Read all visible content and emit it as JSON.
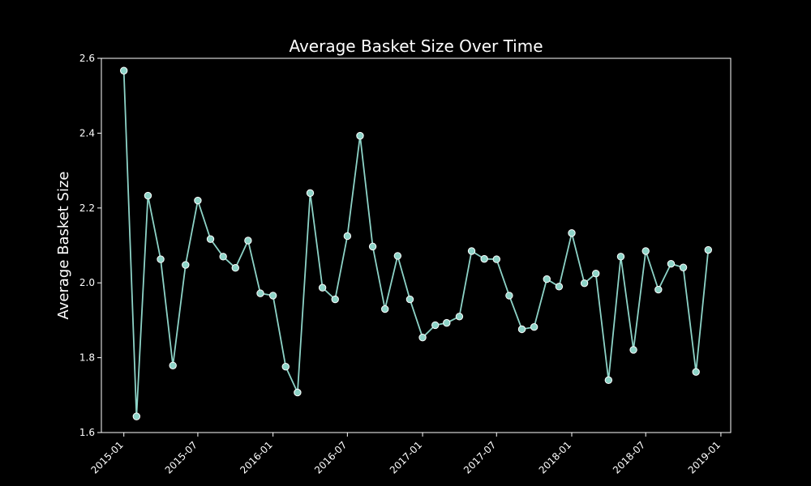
{
  "chart_data": {
    "type": "line",
    "title": "Average Basket Size Over Time",
    "xlabel": "",
    "ylabel": "Average Basket Size",
    "xlim": [
      "2014-11-07",
      "2019-01-25"
    ],
    "ylim": [
      1.6,
      2.6
    ],
    "x_ticks": [
      "2015-01",
      "2015-07",
      "2016-01",
      "2016-07",
      "2017-01",
      "2017-07",
      "2018-01",
      "2018-07",
      "2019-01"
    ],
    "y_ticks": [
      1.6,
      1.8,
      2.0,
      2.2,
      2.4,
      2.6
    ],
    "grid": false,
    "colors": {
      "line": "#8dd3c7",
      "background": "#000000",
      "axes": "#ffffff"
    },
    "series": [
      {
        "x": [
          "2015-01-01",
          "2015-02-01",
          "2015-03-01",
          "2015-04-01",
          "2015-05-01",
          "2015-06-01",
          "2015-07-01",
          "2015-08-01",
          "2015-09-01",
          "2015-10-01",
          "2015-11-01",
          "2015-12-01",
          "2016-01-01",
          "2016-02-01",
          "2016-03-01",
          "2016-04-01",
          "2016-05-01",
          "2016-06-01",
          "2016-07-01",
          "2016-08-01",
          "2016-09-01",
          "2016-10-01",
          "2016-11-01",
          "2016-12-01",
          "2017-01-01",
          "2017-02-01",
          "2017-03-01",
          "2017-04-01",
          "2017-05-01",
          "2017-06-01",
          "2017-07-01",
          "2017-08-01",
          "2017-09-01",
          "2017-10-01",
          "2017-11-01",
          "2017-12-01",
          "2018-01-01",
          "2018-02-01",
          "2018-03-01",
          "2018-04-01",
          "2018-05-01",
          "2018-06-01",
          "2018-07-01",
          "2018-08-01",
          "2018-09-01",
          "2018-10-01",
          "2018-11-01",
          "2018-12-01"
        ],
        "values": [
          2.567,
          1.643,
          2.233,
          2.063,
          1.779,
          2.048,
          2.22,
          2.117,
          2.07,
          2.04,
          2.113,
          1.972,
          1.966,
          1.776,
          1.707,
          2.24,
          1.987,
          1.956,
          2.125,
          2.393,
          2.097,
          1.93,
          2.072,
          1.956,
          1.854,
          1.887,
          1.893,
          1.91,
          2.085,
          2.064,
          2.063,
          1.966,
          1.876,
          1.882,
          2.01,
          1.99,
          2.133,
          1.999,
          2.025,
          1.74,
          2.07,
          1.821,
          2.085,
          1.982,
          2.051,
          2.041,
          1.762,
          2.088
        ]
      }
    ]
  }
}
